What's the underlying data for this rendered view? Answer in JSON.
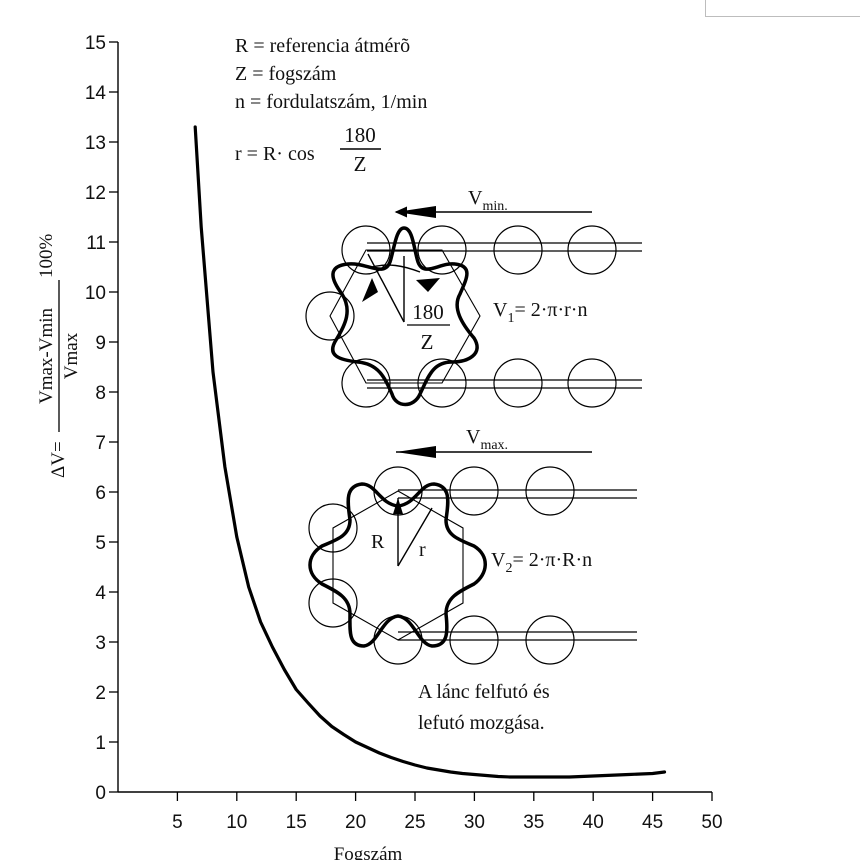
{
  "chart_data": {
    "type": "line",
    "xlabel": "Fogszám",
    "ylabel": {
      "prefix": "ΔV=",
      "numerator": "Vmax-Vmin",
      "denominator": "Vmax",
      "suffix": "100%"
    },
    "xlim": [
      0,
      50
    ],
    "ylim": [
      0,
      15
    ],
    "x_ticks": [
      5,
      10,
      15,
      20,
      25,
      30,
      35,
      40,
      45,
      50
    ],
    "y_ticks": [
      0,
      1,
      2,
      3,
      4,
      5,
      6,
      7,
      8,
      9,
      10,
      11,
      12,
      13,
      14,
      15
    ],
    "grid": false,
    "series": [
      {
        "x": [
          6.5,
          7,
          8,
          9,
          10,
          11,
          12,
          13,
          14,
          15,
          16,
          17,
          18,
          19,
          20,
          21,
          22,
          23,
          24,
          25,
          26,
          27,
          28,
          29,
          30,
          31,
          32,
          33,
          34,
          35,
          36,
          37,
          38,
          39,
          40,
          41,
          42,
          43,
          44,
          45,
          46
        ],
        "values": [
          13.3,
          11.3,
          8.4,
          6.5,
          5.1,
          4.1,
          3.4,
          2.9,
          2.45,
          2.05,
          1.78,
          1.52,
          1.31,
          1.15,
          1.0,
          0.89,
          0.78,
          0.69,
          0.61,
          0.54,
          0.48,
          0.44,
          0.4,
          0.37,
          0.35,
          0.33,
          0.31,
          0.3,
          0.3,
          0.3,
          0.3,
          0.3,
          0.3,
          0.31,
          0.32,
          0.33,
          0.34,
          0.35,
          0.36,
          0.37,
          0.4
        ]
      }
    ],
    "annotations": {
      "legend_lines": [
        "R = referencia átmérõ",
        "Z = fogszám",
        "n = fordulatszám, 1/min"
      ],
      "r_formula_left": "r = R· cos",
      "r_formula_num": "180",
      "r_formula_den": "Z",
      "vmin_label": "V",
      "vmin_sub": "min.",
      "vmax_label": "V",
      "vmax_sub": "max.",
      "v1_label": "V",
      "v1_sub": "1",
      "v1_eq": "= 2·π·r·n",
      "v2_label": "V",
      "v2_sub": "2",
      "v2_eq": "= 2·π·R·n",
      "angle_num": "180",
      "angle_den": "Z",
      "label_R": "R",
      "label_r": "r",
      "caption_line1": "A lánc felfutó és",
      "caption_line2": "lefutó mozgása."
    }
  }
}
